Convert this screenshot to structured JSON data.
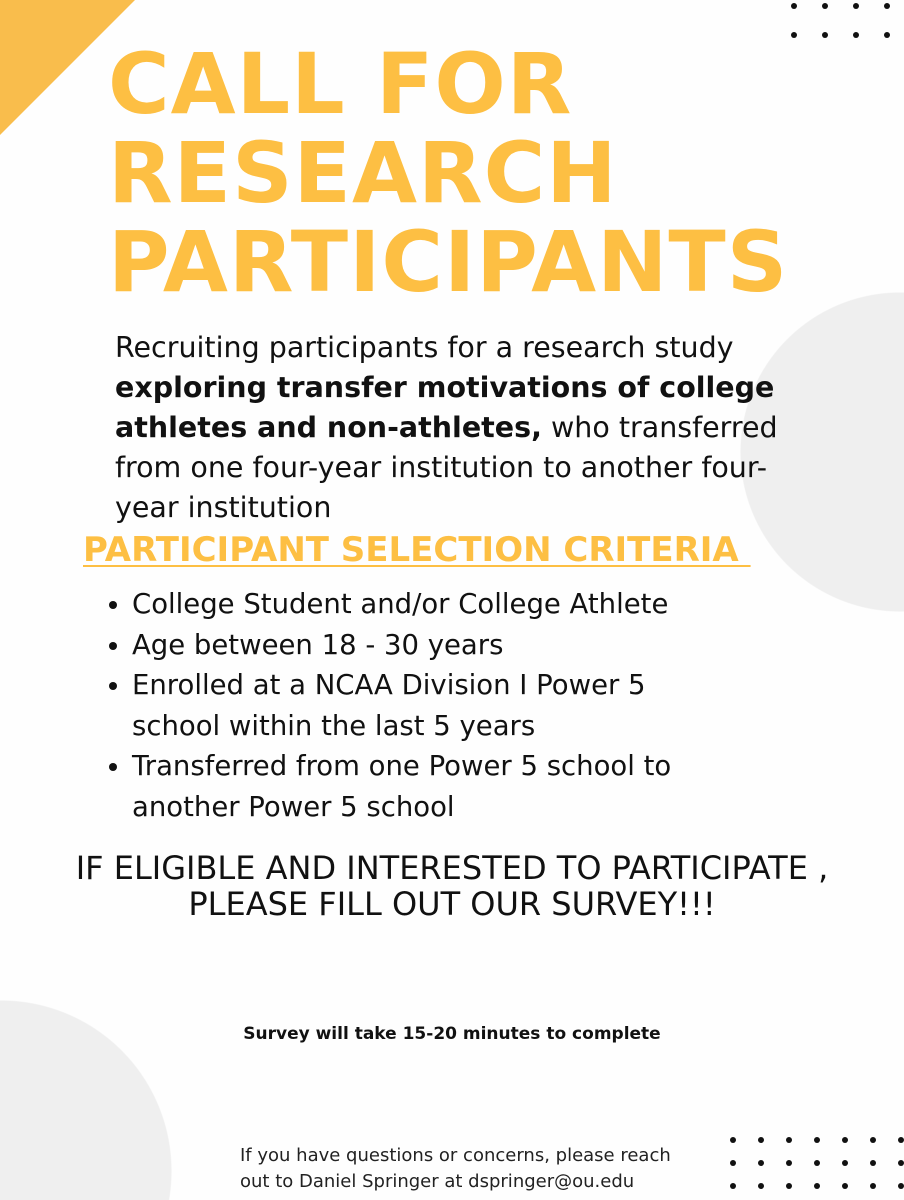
{
  "colors": {
    "accent": "#fdbf43",
    "text": "#111111",
    "circle": "#efefef"
  },
  "title": [
    "CALL FOR",
    "RESEARCH",
    "PARTICIPANTS"
  ],
  "intro": {
    "lead": "Recruiting participants for a research study ",
    "bold": "exploring transfer motivations of college athletes and non-athletes,",
    "rest": " who transferred from one four-year institution to another four-year institution"
  },
  "criteria_heading": "PARTICIPANT SELECTION CRITERIA ",
  "criteria": [
    "College Student and/or College Athlete",
    "Age between 18 - 30 years",
    "Enrolled at a NCAA Division I Power 5 school within the last 5 years",
    "Transferred from one Power 5 school to another Power 5 school"
  ],
  "cta": [
    "IF ELIGIBLE AND INTERESTED TO PARTICIPATE ,",
    "PLEASE FILL OUT OUR SURVEY!!!"
  ],
  "survey_time": "Survey will take 15-20 minutes to complete",
  "contact": [
    "If you have questions or concerns, please reach",
    "out to Daniel Springer at dspringer@ou.edu"
  ]
}
